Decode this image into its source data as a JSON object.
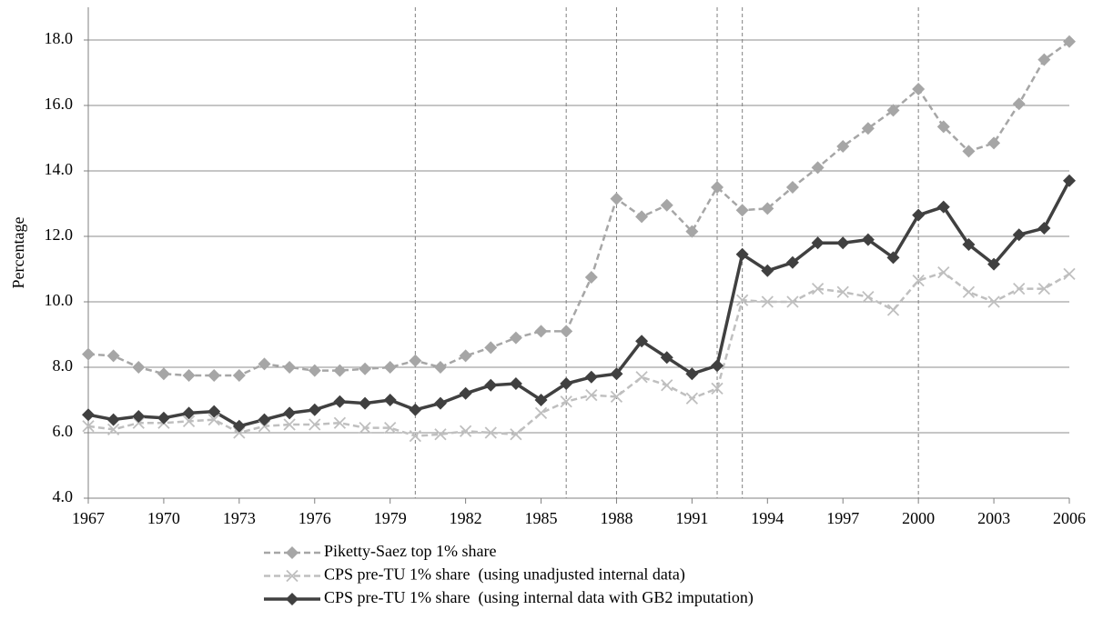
{
  "chart_data": {
    "type": "line",
    "y_label": "Percentage",
    "x": [
      1967,
      1968,
      1969,
      1970,
      1971,
      1972,
      1973,
      1974,
      1975,
      1976,
      1977,
      1978,
      1979,
      1980,
      1981,
      1982,
      1983,
      1984,
      1985,
      1986,
      1987,
      1988,
      1989,
      1990,
      1991,
      1992,
      1993,
      1994,
      1995,
      1996,
      1997,
      1998,
      1999,
      2000,
      2001,
      2002,
      2003,
      2004,
      2005,
      2006
    ],
    "xlim": [
      1967,
      2006
    ],
    "xticks": [
      1967,
      1970,
      1973,
      1976,
      1979,
      1982,
      1985,
      1988,
      1991,
      1994,
      1997,
      2000,
      2003,
      2006
    ],
    "ylim": [
      4,
      19
    ],
    "yticks": [
      {
        "value": 4,
        "label": "4.0"
      },
      {
        "value": 6,
        "label": "6.0"
      },
      {
        "value": 8,
        "label": "8.0"
      },
      {
        "value": 10,
        "label": "10.0"
      },
      {
        "value": 12,
        "label": "12.0"
      },
      {
        "value": 14,
        "label": "14.0"
      },
      {
        "value": 16,
        "label": "16.0"
      },
      {
        "value": 18,
        "label": "18.0"
      }
    ],
    "grid": true,
    "reference_lines": [
      1980,
      1986,
      1988,
      1992,
      1993,
      2000
    ],
    "legend": "bottom",
    "series": [
      {
        "name": "Piketty-Saez top 1% share",
        "color": "#a6a6a6",
        "dash": true,
        "marker": "diamond",
        "values": [
          8.4,
          8.35,
          8.0,
          7.8,
          7.75,
          7.75,
          7.75,
          8.1,
          8.0,
          7.9,
          7.9,
          7.95,
          8.0,
          8.2,
          8.0,
          8.35,
          8.6,
          8.9,
          9.1,
          9.1,
          10.75,
          13.15,
          12.6,
          12.95,
          12.15,
          13.5,
          12.8,
          12.85,
          13.5,
          14.1,
          14.75,
          15.3,
          15.85,
          16.5,
          15.35,
          14.6,
          14.85,
          16.05,
          17.4,
          17.95
        ]
      },
      {
        "name": "CPS pre-TU 1% share  (using unadjusted internal data)",
        "color": "#bfbfbf",
        "dash": true,
        "marker": "x",
        "values": [
          6.2,
          6.1,
          6.3,
          6.3,
          6.35,
          6.4,
          6.0,
          6.2,
          6.25,
          6.25,
          6.3,
          6.15,
          6.15,
          5.9,
          5.95,
          6.05,
          6.0,
          5.95,
          6.6,
          6.95,
          7.15,
          7.1,
          7.7,
          7.45,
          7.05,
          7.35,
          10.05,
          10.0,
          10.0,
          10.4,
          10.3,
          10.15,
          9.75,
          10.65,
          10.9,
          10.3,
          10.0,
          10.4,
          10.4,
          10.85
        ]
      },
      {
        "name": "CPS pre-TU 1% share  (using internal data with GB2 imputation)",
        "color": "#404040",
        "dash": false,
        "marker": "diamond",
        "values": [
          6.55,
          6.4,
          6.5,
          6.45,
          6.6,
          6.65,
          6.2,
          6.4,
          6.6,
          6.7,
          6.95,
          6.9,
          7.0,
          6.7,
          6.9,
          7.2,
          7.45,
          7.5,
          7.0,
          7.5,
          7.7,
          7.8,
          8.8,
          8.3,
          7.8,
          8.05,
          11.45,
          10.95,
          11.2,
          11.8,
          11.8,
          11.9,
          11.35,
          12.65,
          12.9,
          11.75,
          11.15,
          12.05,
          12.25,
          13.7
        ]
      }
    ]
  }
}
